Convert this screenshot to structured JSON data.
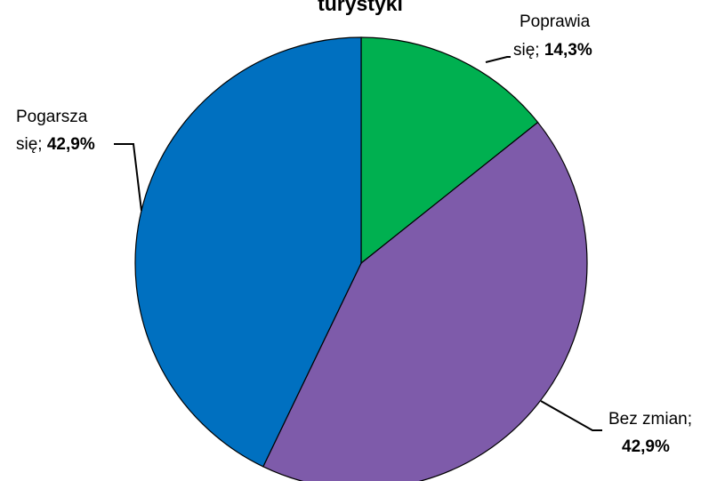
{
  "chart_data": {
    "type": "pie",
    "title": "turystyki",
    "slices": [
      {
        "label_line1": "Poprawia",
        "label_line2": "się;",
        "value_label": "14,3%",
        "value": 14.3,
        "color": "#00B050"
      },
      {
        "label_line1": "Bez zmian;",
        "label_line2": "",
        "value_label": "42,9%",
        "value": 42.9,
        "color": "#7E5BAA"
      },
      {
        "label_line1": "Pogarsza",
        "label_line2": "się;",
        "value_label": "42,9%",
        "value": 42.9,
        "color": "#0070C0"
      }
    ]
  }
}
